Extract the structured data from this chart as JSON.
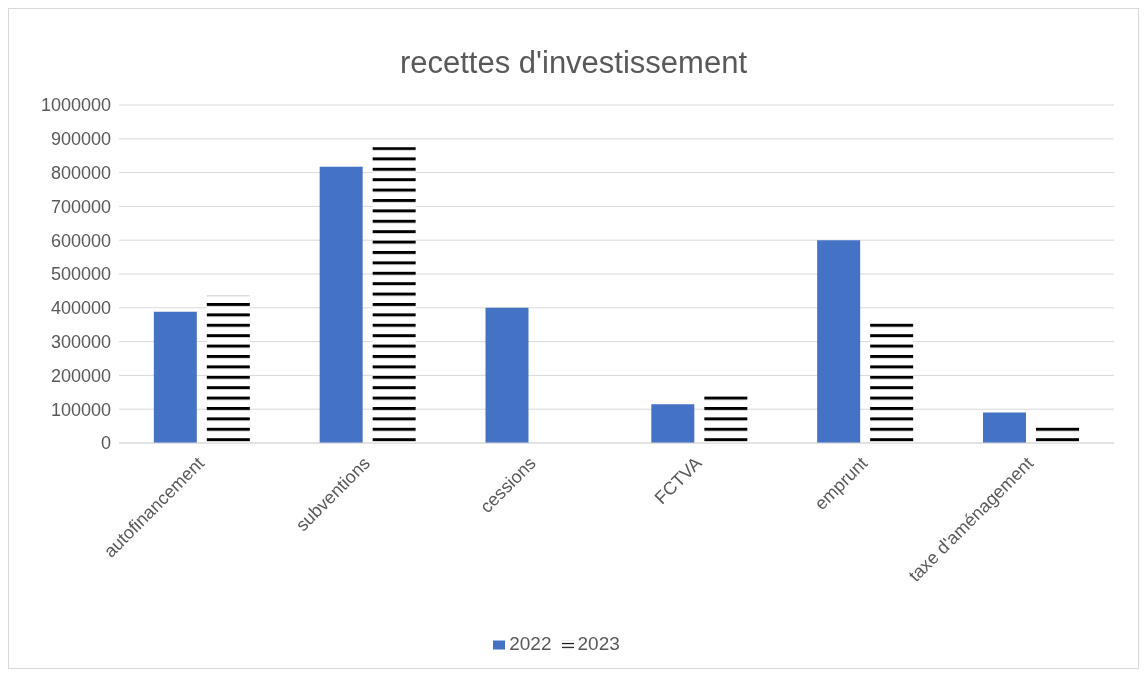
{
  "chart_data": {
    "type": "bar",
    "title": "recettes d'investissement",
    "categories": [
      "autofinancement",
      "subventions",
      "cessions",
      "FCTVA",
      "emprunt",
      "taxe d'aménagement"
    ],
    "series": [
      {
        "name": "2022",
        "color": "#4472c4",
        "values": [
          388000,
          817000,
          400000,
          115000,
          600000,
          90000
        ]
      },
      {
        "name": "2023",
        "color": "#000000",
        "values": [
          436000,
          875000,
          null,
          141000,
          356000,
          54000
        ]
      }
    ],
    "ylim": [
      0,
      1000000
    ],
    "yticks": [
      0,
      100000,
      200000,
      300000,
      400000,
      500000,
      600000,
      700000,
      800000,
      900000,
      1000000
    ],
    "grid": "y",
    "legend": "bottom"
  }
}
